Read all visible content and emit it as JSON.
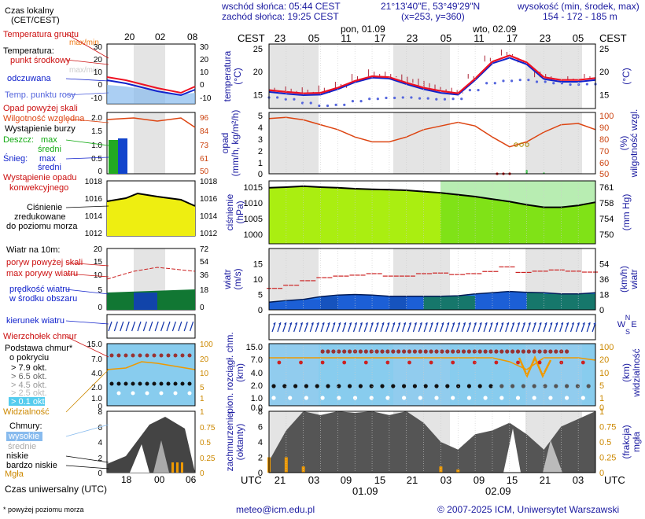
{
  "header": {
    "sunrise": "wschód słońca: 05:44 CEST",
    "sunset": "zachód słońca: 19:25 CEST",
    "coords": "21°13'40\"E, 53°49'29\"N",
    "grid": "(x=253, y=360)",
    "alt_title": "wysokość (min, środek, max)",
    "alt_values": "154 - 172 - 185 m",
    "tz_local": "CEST",
    "tz_utc": "UTC"
  },
  "legend": {
    "local_time": "Czas lokalny",
    "local_time_tz": "(CET/CEST)",
    "local_hours": [
      "20",
      "02",
      "08"
    ],
    "soil_temp": "Temperatura gruntu",
    "soil_temp_sub": "max/min",
    "temp": "Temperatura:",
    "temp_center": "punkt środkowy",
    "temp_minmax": "max/min",
    "temp_felt": "odczuwana",
    "temp_dew": "Temp. punktu rosy",
    "precip_above": "Opad powyżej skali",
    "humidity": "Wilgotność względna",
    "storm": "Wystąpienie burzy",
    "rain": "Deszcz:",
    "rain_max": "max",
    "rain_mid": "średni",
    "snow": "Śnieg:",
    "snow_max": "max",
    "snow_mid": "średni",
    "precip_conv": "Wystąpienie opadu",
    "precip_conv2": "konwekcyjnego",
    "pressure1": "Ciśnienie",
    "pressure2": "zredukowane",
    "pressure3": "do poziomu morza",
    "wind_title": "Wiatr na 10m:",
    "gust_above": "poryw powyżej skali",
    "gust_max": "max porywy wiatru",
    "wind_speed": "prędkość wiatru",
    "wind_area": "w środku obszaru",
    "wind_dir": "kierunek wiatru",
    "cloud_top": "Wierzchołek chmur",
    "cloud_base": "Podstawa chmur*",
    "cloud_cover": "o pokryciu",
    "okt79": "> 7.9 okt.",
    "okt65": "> 6.5 okt.",
    "okt45": "> 4.5 okt.",
    "okt25": "> 2.5 okt.",
    "okt01": "> 0.1 okt.",
    "visibility": "Widzialność",
    "clouds": "Chmury:",
    "cl_high": "wysokie",
    "cl_mid": "średnie",
    "cl_low": "niskie",
    "cl_vlow": "bardzo niskie",
    "fog": "Mgła",
    "utc_time": "Czas uniwersalny (UTC)",
    "utc_hours": [
      "18",
      "00",
      "06"
    ],
    "footnote": "* powyżej poziomu morza"
  },
  "days": {
    "day1": "pon, 01.09",
    "day2": "wto, 02.09",
    "date1": "01.09",
    "date2": "02.09"
  },
  "ticks": {
    "cest": [
      "23",
      "05",
      "11",
      "17",
      "23",
      "05",
      "11",
      "17",
      "23",
      "05"
    ],
    "utc": [
      "21",
      "03",
      "09",
      "15",
      "21",
      "03",
      "09",
      "15",
      "21",
      "03"
    ]
  },
  "axes": {
    "temp_label": "temperatura",
    "temp_unit": "(°C)",
    "temp_ticks": [
      "25",
      "20",
      "15"
    ],
    "precip_label": "opad",
    "precip_unit": "(mm/h, kg/m²/h)",
    "precip_ticks": [
      "5",
      "4",
      "3",
      "2",
      "1",
      "0"
    ],
    "hum_label": "wilgotność wzgl.",
    "hum_unit": "(%)",
    "hum_ticks": [
      "100",
      "90",
      "80",
      "70",
      "60",
      "50"
    ],
    "pres_label": "ciśnienie",
    "pres_unit": "(hPa)",
    "pres_ticks": [
      "1015",
      "1010",
      "1005",
      "1000"
    ],
    "mmhg_label": "(mm Hg)",
    "mmhg_ticks": [
      "761",
      "758",
      "754",
      "750"
    ],
    "wind_label": "wiatr",
    "wind_unit": "(m/s)",
    "wind_ticks": [
      "15",
      "10",
      "5",
      "0"
    ],
    "kmh_label": "(km/h)",
    "kmh_label2": "wiatr",
    "kmh_ticks": [
      "54",
      "36",
      "18",
      "0"
    ],
    "cloud_label1": "pion. rozciągł. chm.",
    "cloud_unit": "(km)",
    "cloud_ticks": [
      "15.0",
      "7.0",
      "4.0",
      "2.0",
      "1.0",
      "0.0"
    ],
    "vis_label": "widzialność",
    "vis_unit": "(km)",
    "vis_ticks": [
      "100",
      "20",
      "10",
      "5",
      "1",
      "0"
    ],
    "cov_label1": "zachmurzenie",
    "cov_label2": "(oktanty)",
    "cov_ticks": [
      "8",
      "6",
      "4",
      "2",
      "0"
    ],
    "fog_label1": "(frakcja)",
    "fog_label2": "mgła",
    "fog_ticks": [
      "1",
      "0.75",
      "0.5",
      "0.25",
      "0"
    ],
    "compass": [
      "N",
      "W",
      "E",
      "S"
    ]
  },
  "footer": {
    "email": "meteo@icm.edu.pl",
    "copyright": "© 2007-2025 ICM, Uniwersytet Warszawski"
  },
  "colors": {
    "temp": "#ee1122",
    "felt": "#1122cc",
    "dew": "#5566dd",
    "humidity": "#dd4411",
    "night": "#e4e4e4",
    "pressure": "#aaee11",
    "wind_fill": "#1a5fdd",
    "gust": "#cc2222",
    "arrow": "#1133aa",
    "cloud_band": "#88ccee"
  },
  "chart_data": [
    {
      "type": "line",
      "title": "temperatura (°C)",
      "x": [
        "21",
        "00",
        "03",
        "06",
        "09",
        "12",
        "15",
        "18",
        "21",
        "00",
        "03",
        "06",
        "09",
        "12",
        "15",
        "18",
        "21",
        "00",
        "03",
        "06"
      ],
      "ylim": [
        12,
        26
      ],
      "series": [
        {
          "name": "punkt środkowy",
          "values": [
            16,
            15.6,
            15.3,
            15.4,
            16.5,
            18,
            19,
            18.8,
            17.6,
            16.5,
            15.8,
            15.3,
            18.5,
            22.2,
            23.5,
            22,
            18.8,
            18.2,
            18.2,
            18.6
          ]
        },
        {
          "name": "odczuwana",
          "values": [
            15.6,
            15.2,
            14.9,
            15,
            16.2,
            17.7,
            18.7,
            18.5,
            17.3,
            16.2,
            15.4,
            15,
            18.2,
            21.8,
            23,
            21.6,
            18.4,
            17.8,
            17.8,
            18.2
          ]
        },
        {
          "name": "Temp. punktu rosy",
          "values": [
            14.4,
            14,
            13.2,
            12.6,
            12.8,
            13.6,
            14.1,
            14.3,
            14.4,
            14.2,
            14,
            14.1,
            16,
            17.5,
            18,
            18.2,
            17.8,
            17.5,
            17.2,
            17.3
          ]
        },
        {
          "name": "max/min",
          "values": [
            17,
            16.8,
            16.6,
            17,
            17.8,
            19.5,
            20.5,
            20,
            19.4,
            18.5,
            17.2,
            16.5,
            19.5,
            23.5,
            24.8,
            23,
            20.5,
            19,
            19,
            19.5
          ]
        }
      ]
    },
    {
      "type": "line",
      "title": "wilgotność wzgl. (%)",
      "x": [
        "21",
        "00",
        "03",
        "06",
        "09",
        "12",
        "15",
        "18",
        "21",
        "00",
        "03",
        "06",
        "09",
        "12",
        "15",
        "18",
        "21",
        "00",
        "03",
        "06"
      ],
      "ylim": [
        50,
        100
      ],
      "series": [
        {
          "name": "Wilgotność względna",
          "values": [
            95,
            96,
            94,
            90,
            86,
            80,
            76,
            76,
            80,
            86,
            89,
            92,
            89,
            80,
            72,
            76,
            84,
            90,
            91,
            86
          ]
        },
        {
          "name": "opad (mm/h)",
          "values": [
            0,
            0,
            0,
            0,
            0,
            0,
            0,
            0,
            0,
            0,
            0,
            0,
            0,
            0,
            0.1,
            0.3,
            0.1,
            0,
            0,
            0
          ]
        }
      ]
    },
    {
      "type": "area",
      "title": "ciśnienie (hPa)",
      "x": [
        "21",
        "00",
        "03",
        "06",
        "09",
        "12",
        "15",
        "18",
        "21",
        "00",
        "03",
        "06",
        "09",
        "12",
        "15",
        "18",
        "21",
        "00",
        "03",
        "06"
      ],
      "ylim": [
        997,
        1017
      ],
      "series": [
        {
          "name": "Ciśnienie zredukowane do poziomu morza",
          "values": [
            1014.8,
            1015,
            1015.3,
            1015,
            1014.8,
            1014.5,
            1014.3,
            1014.2,
            1014,
            1013.6,
            1013.2,
            1012.6,
            1012,
            1011.2,
            1010.4,
            1009.4,
            1008.6,
            1008.6,
            1009.2,
            1010.2
          ]
        }
      ]
    },
    {
      "type": "area",
      "title": "wiatr (m/s)",
      "x": [
        "21",
        "00",
        "03",
        "06",
        "09",
        "12",
        "15",
        "18",
        "21",
        "00",
        "03",
        "06",
        "09",
        "12",
        "15",
        "18",
        "21",
        "00",
        "03",
        "06"
      ],
      "ylim": [
        0,
        20
      ],
      "series": [
        {
          "name": "prędkość wiatru",
          "values": [
            2.5,
            3,
            3.4,
            4.3,
            4.8,
            5,
            4.8,
            4.4,
            4.4,
            4.4,
            4.4,
            4.6,
            5.2,
            5.6,
            6,
            5.7,
            5.6,
            5.2,
            5.2,
            5.6
          ]
        },
        {
          "name": "max porywy wiatru",
          "values": [
            7,
            8,
            9.5,
            10.5,
            11,
            11.3,
            11.8,
            11,
            11,
            11.8,
            12,
            11.5,
            11.8,
            12.5,
            14,
            12.2,
            12.6,
            13,
            12.6,
            12.3
          ]
        }
      ]
    },
    {
      "type": "area",
      "title": "zachmurzenie (oktanty)",
      "x": [
        "21",
        "00",
        "03",
        "06",
        "09",
        "12",
        "15",
        "18",
        "21",
        "00",
        "03",
        "06",
        "09",
        "12",
        "15",
        "18",
        "21",
        "00",
        "03",
        "06"
      ],
      "ylim": [
        0,
        8
      ],
      "series": [
        {
          "name": "niskie",
          "values": [
            1.5,
            5.5,
            8,
            7.5,
            8,
            7.8,
            8,
            7.5,
            8,
            6.5,
            4,
            3,
            5,
            5.5,
            6.5,
            5,
            3,
            6,
            7,
            8
          ]
        },
        {
          "name": "mgła",
          "values": [
            0.25,
            0.25,
            0.1,
            0,
            0,
            0,
            0,
            0,
            0,
            0,
            0.1,
            0.05,
            0,
            0,
            0,
            0,
            0,
            0,
            0,
            0
          ]
        }
      ]
    }
  ]
}
